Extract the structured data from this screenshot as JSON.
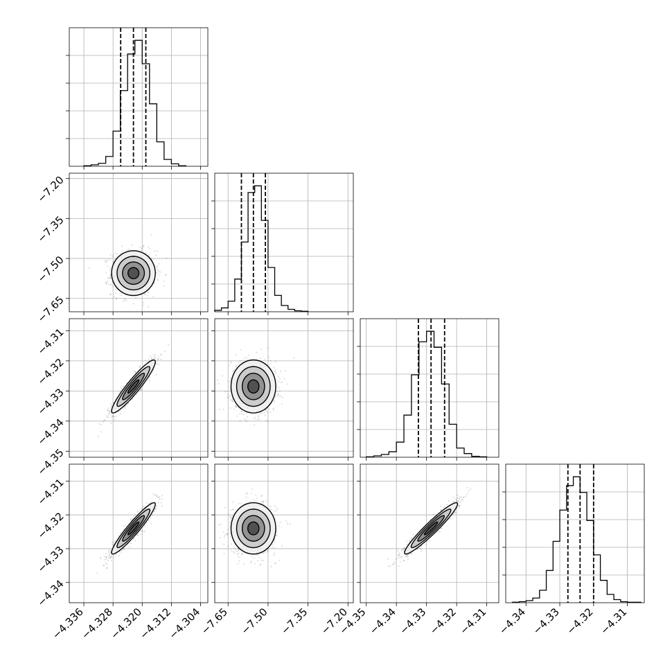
{
  "chart_data": {
    "type": "scatter",
    "kind": "corner-plot",
    "grid": true,
    "title": "",
    "parameters": [
      {
        "range": [
          -4.34,
          -4.302
        ],
        "ticks": [
          -4.336,
          -4.328,
          -4.32,
          -4.312,
          -4.304
        ],
        "tick_labels": [
          "−4.336",
          "−4.328",
          "−4.320",
          "−4.312",
          "−4.304"
        ],
        "median": -4.3224,
        "q16": -4.3259,
        "q84": -4.319,
        "sigma": 0.003
      },
      {
        "range": [
          -7.7,
          -7.18
        ],
        "ticks": [
          -7.65,
          -7.5,
          -7.35,
          -7.2
        ],
        "tick_labels": [
          "−7.65",
          "−7.50",
          "−7.35",
          "−7.20"
        ],
        "median": -7.555,
        "q16": -7.6,
        "q84": -7.51,
        "sigma": 0.042
      },
      {
        "range": [
          -4.352,
          -4.306
        ],
        "ticks": [
          -4.35,
          -4.34,
          -4.33,
          -4.32,
          -4.31
        ],
        "tick_labels": [
          "−4.35",
          "−4.34",
          "−4.33",
          "−4.32",
          "−4.31"
        ],
        "median": -4.3285,
        "q16": -4.3327,
        "q84": -4.324,
        "sigma": 0.0044
      },
      {
        "range": [
          -4.346,
          -4.305
        ],
        "ticks": [
          -4.34,
          -4.33,
          -4.32,
          -4.31
        ],
        "tick_labels": [
          "−4.34",
          "−4.33",
          "−4.32",
          "−4.31"
        ],
        "median": -4.324,
        "q16": -4.3276,
        "q84": -4.32,
        "sigma": 0.0038
      }
    ],
    "histograms": [
      {
        "param": 0,
        "bins": [
          -4.336,
          -4.334,
          -4.332,
          -4.33,
          -4.328,
          -4.326,
          -4.324,
          -4.322,
          -4.32,
          -4.318,
          -4.316,
          -4.314,
          -4.312,
          -4.31
        ],
        "counts": [
          1,
          3,
          6,
          20,
          72,
          155,
          230,
          258,
          210,
          128,
          50,
          14,
          5,
          1
        ]
      },
      {
        "param": 1,
        "bins": [
          -7.7,
          -7.675,
          -7.65,
          -7.625,
          -7.6,
          -7.575,
          -7.55,
          -7.525,
          -7.5,
          -7.475,
          -7.45,
          -7.425,
          -7.4,
          -7.375
        ],
        "counts": [
          3,
          8,
          22,
          68,
          145,
          248,
          262,
          190,
          92,
          34,
          13,
          5,
          2,
          1
        ]
      },
      {
        "param": 2,
        "bins": [
          -4.35,
          -4.3475,
          -4.345,
          -4.3425,
          -4.34,
          -4.3375,
          -4.335,
          -4.3325,
          -4.33,
          -4.3275,
          -4.325,
          -4.3225,
          -4.32,
          -4.3175,
          -4.315,
          -4.3125
        ],
        "counts": [
          1,
          3,
          6,
          12,
          33,
          92,
          180,
          252,
          275,
          240,
          160,
          72,
          20,
          8,
          2,
          1
        ]
      },
      {
        "param": 3,
        "bins": [
          -4.344,
          -4.342,
          -4.34,
          -4.338,
          -4.336,
          -4.334,
          -4.332,
          -4.33,
          -4.328,
          -4.326,
          -4.324,
          -4.322,
          -4.32,
          -4.318,
          -4.316,
          -4.314,
          -4.312,
          -4.31,
          -4.308
        ],
        "counts": [
          1,
          2,
          4,
          9,
          24,
          62,
          118,
          178,
          225,
          242,
          212,
          158,
          92,
          43,
          16,
          6,
          2,
          1,
          1
        ]
      }
    ],
    "correlations": [
      {
        "x": 0,
        "y": 1,
        "rho": 0.0
      },
      {
        "x": 0,
        "y": 2,
        "rho": 0.93
      },
      {
        "x": 1,
        "y": 2,
        "rho": 0.0
      },
      {
        "x": 0,
        "y": 3,
        "rho": 0.94
      },
      {
        "x": 1,
        "y": 3,
        "rho": 0.0
      },
      {
        "x": 2,
        "y": 3,
        "rho": 0.95
      }
    ],
    "contour_levels_sigma": [
      0.5,
      1.0,
      1.5,
      2.0
    ],
    "n_samples_drawn": 900
  }
}
